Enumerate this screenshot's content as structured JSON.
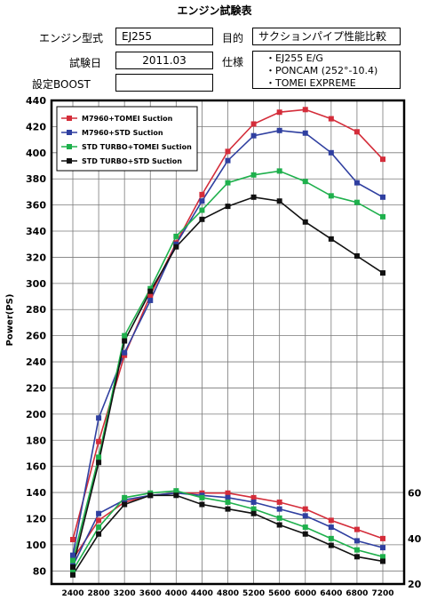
{
  "sheet": {
    "title": "エンジン試験表",
    "engine_label": "エンジン型式",
    "engine_value": "EJ255",
    "date_label": "試験日",
    "date_value": "2011.03",
    "boost_label": "設定BOOST",
    "boost_value": "",
    "purpose_label": "目的",
    "purpose_value": "サクションパイプ性能比較",
    "spec_label": "仕様",
    "spec_items": [
      "・EJ255 E/G",
      "・PONCAM (252°-10.4)",
      "・TOMEI EXPREME"
    ]
  },
  "chart_data": {
    "type": "line",
    "ylabel": "Power(PS)",
    "x": [
      2400,
      2800,
      3200,
      3600,
      4000,
      4400,
      4800,
      5200,
      5600,
      6000,
      6400,
      6800,
      7200
    ],
    "ylim": [
      70,
      440
    ],
    "y_ticks": [
      80,
      100,
      120,
      140,
      160,
      180,
      200,
      220,
      240,
      260,
      280,
      300,
      320,
      340,
      360,
      380,
      400,
      420,
      440
    ],
    "y2_ticks": [
      20,
      40,
      60
    ],
    "y2lim": [
      20,
      70
    ],
    "grid": true,
    "legend_position": "top-left",
    "power_series": [
      {
        "name": "M7960+TOMEI Suction",
        "color": "#d42d3a",
        "values": [
          104,
          179,
          245,
          291,
          331,
          368,
          401,
          422,
          431,
          433,
          426,
          416,
          395
        ]
      },
      {
        "name": "M7960+STD Suction",
        "color": "#2f3fa0",
        "values": [
          92,
          197,
          247,
          287,
          330,
          363,
          394,
          413,
          417,
          415,
          400,
          377,
          366
        ]
      },
      {
        "name": "STD TURBO+TOMEI Suction",
        "color": "#1eb04c",
        "values": [
          88,
          167,
          260,
          296,
          336,
          356,
          377,
          383,
          386,
          378,
          367,
          362,
          351
        ]
      },
      {
        "name": "STD TURBO+STD Suction",
        "color": "#111111",
        "values": [
          83,
          163,
          256,
          294,
          328,
          349,
          359,
          366,
          363,
          347,
          334,
          321,
          308
        ]
      }
    ],
    "torque_series": [
      {
        "name": "M7960+TOMEI Suction",
        "color": "#d42d3a",
        "values": [
          31,
          48,
          56,
          59,
          60,
          60,
          60,
          58,
          56,
          53,
          48,
          44,
          40
        ]
      },
      {
        "name": "M7960+STD Suction",
        "color": "#2f3fa0",
        "values": [
          28,
          51,
          57,
          59,
          60,
          59,
          58,
          56,
          53,
          50,
          45,
          39,
          36
        ]
      },
      {
        "name": "STD TURBO+TOMEI Suction",
        "color": "#1eb04c",
        "values": [
          26,
          45,
          58,
          60,
          61,
          58,
          56,
          53,
          49,
          45,
          40,
          35,
          32
        ]
      },
      {
        "name": "STD TURBO+STD Suction",
        "color": "#111111",
        "values": [
          24,
          42,
          55,
          59,
          59,
          55,
          53,
          51,
          46,
          42,
          37,
          32,
          30
        ]
      }
    ]
  }
}
